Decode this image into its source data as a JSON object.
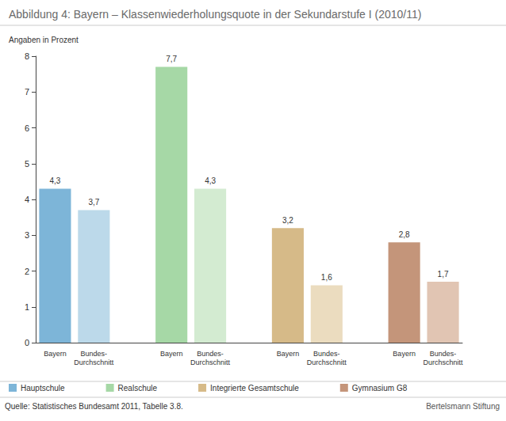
{
  "chart_data": {
    "type": "bar",
    "title": "Abbildung 4: Bayern – Klassenwiederholungsquote in der Sekundarstufe I (2010/11)",
    "subtitle": "Angaben in Prozent",
    "source": "Quelle: Statistisches Bundesamt 2011, Tabelle 3.8.",
    "logo": "Bertelsmann Stiftung",
    "series": [
      {
        "name": "Hauptschule",
        "categories": [
          "Bayern",
          "Bundes-Durchschnitt"
        ],
        "values": [
          4.3,
          3.7
        ],
        "value_labels": [
          "4,3",
          "3,7"
        ],
        "colors": [
          "#7db5d8",
          "#bcd9ea"
        ]
      },
      {
        "name": "Realschule",
        "categories": [
          "Bayern",
          "Bundes-Durchschnitt"
        ],
        "values": [
          7.7,
          4.3
        ],
        "value_labels": [
          "7,7",
          "4,3"
        ],
        "colors": [
          "#a6d8a6",
          "#d3ebd1"
        ]
      },
      {
        "name": "Integrierte Gesamtschule",
        "categories": [
          "Bayern",
          "Bundes-Durchschnitt"
        ],
        "values": [
          3.2,
          1.6
        ],
        "value_labels": [
          "3,2",
          "1,6"
        ],
        "colors": [
          "#d6ba88",
          "#ebdcbf"
        ]
      },
      {
        "name": "Gymnasium G8",
        "categories": [
          "Bayern",
          "Bundes-Durchschnitt"
        ],
        "values": [
          2.8,
          1.7
        ],
        "value_labels": [
          "2,8",
          "1,7"
        ],
        "colors": [
          "#c4957a",
          "#e1c5b3"
        ]
      }
    ],
    "ylim": [
      0,
      8
    ],
    "yticks": [
      0,
      1,
      2,
      3,
      4,
      5,
      6,
      7,
      8
    ],
    "grid": false,
    "legend": "bottom-left",
    "data_labels": true
  }
}
